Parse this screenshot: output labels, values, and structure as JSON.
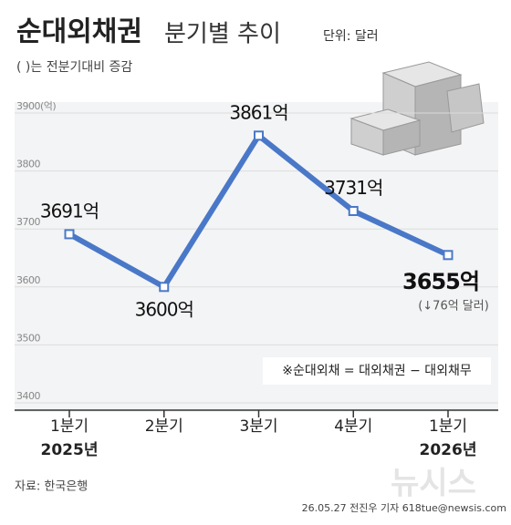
{
  "chart_data": {
    "type": "line",
    "title": "순대외채권",
    "subtitle": "분기별 추이",
    "unit_note": "단위: 달러",
    "legend_note": "( )는 전분기대비 증감",
    "categories": [
      "1분기",
      "2분기",
      "3분기",
      "4분기",
      "1분기"
    ],
    "year_labels": [
      "2025년",
      null,
      null,
      null,
      "2026년"
    ],
    "series": [
      {
        "name": "순대외채권",
        "color": "#4a78c8",
        "values": [
          3691,
          3600,
          3861,
          3731,
          3655
        ],
        "value_labels": [
          "3691억",
          "3600억",
          "3861억",
          "3731억",
          "3655억"
        ]
      }
    ],
    "change_label": "(↓76억 달러)",
    "formula_note": "※순대외채 = 대외채권 − 대외채무",
    "ylim": [
      3400,
      3900
    ],
    "yticks": [
      {
        "value": 3900,
        "label": "3900(억)"
      },
      3800,
      3700,
      3600,
      3500,
      3400
    ],
    "grid": true,
    "source": "자료: 한국은행",
    "credit": "26.05.27 전진우 기자 618tue@newsis.com",
    "watermark": "뉴시스"
  }
}
